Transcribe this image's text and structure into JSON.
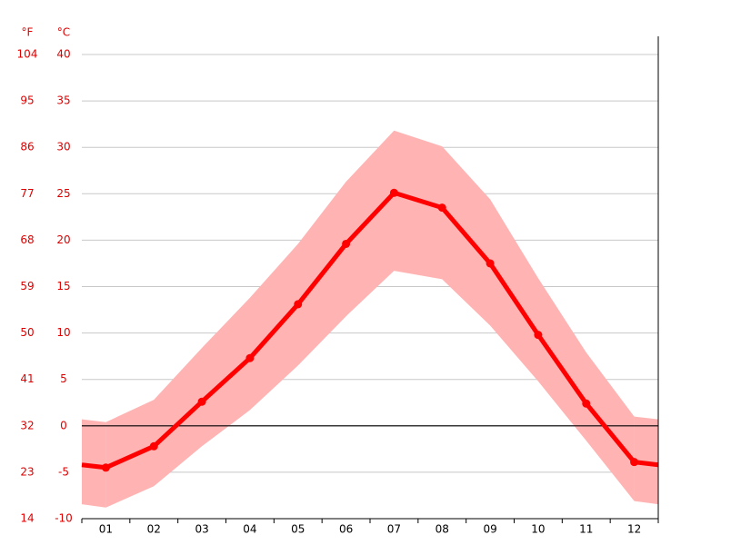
{
  "chart_data": {
    "type": "line",
    "categories": [
      "01",
      "02",
      "03",
      "04",
      "05",
      "06",
      "07",
      "08",
      "09",
      "10",
      "11",
      "12"
    ],
    "series": [
      {
        "color": "#ff0000",
        "values": [
          -4.5,
          -2.2,
          2.6,
          7.3,
          13.1,
          19.6,
          25.1,
          23.5,
          17.5,
          9.8,
          2.4,
          -3.9
        ]
      }
    ],
    "band": {
      "color": "#ffb3b3",
      "high": [
        0.4,
        2.8,
        8.4,
        13.8,
        19.6,
        26.3,
        31.8,
        30.1,
        24.4,
        15.9,
        7.9,
        1.0
      ],
      "low": [
        -8.8,
        -6.5,
        -2.2,
        1.7,
        6.5,
        11.8,
        16.7,
        15.8,
        10.8,
        4.8,
        -1.6,
        -8.1
      ]
    },
    "y_unit": "°C",
    "y2_unit": "°F",
    "ylim": [
      -10,
      40
    ],
    "yticks": [
      -10,
      -5,
      0,
      5,
      10,
      15,
      20,
      25,
      30,
      35,
      40
    ],
    "y2lim": [
      14,
      104
    ],
    "y2ticks": [
      14,
      23,
      32,
      41,
      50,
      59,
      68,
      77,
      86,
      95,
      104
    ],
    "grid": true
  }
}
